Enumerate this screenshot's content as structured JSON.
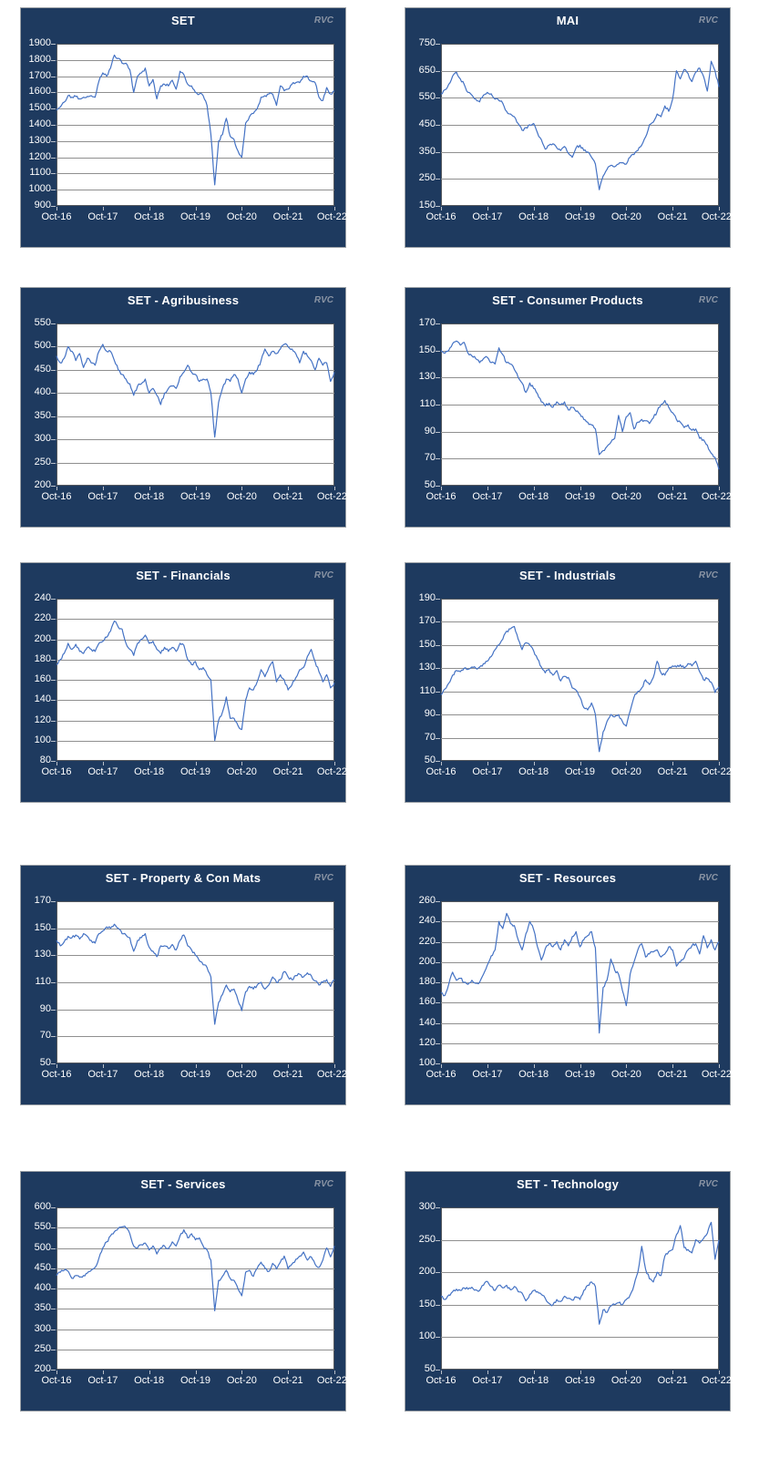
{
  "watermark": "RVC",
  "colors": {
    "panel_bg": "#1e3a5f",
    "panel_border": "#9aa0a6",
    "plot_bg": "#ffffff",
    "plot_border": "#54585e",
    "gridline": "#8f8f8f",
    "tick": "#b9bfc9",
    "series": "#4472c4",
    "title_text": "#ffffff",
    "axis_text": "#ffffff",
    "watermark_text": "#8a94a4"
  },
  "x_tick_labels": [
    "Oct-16",
    "Oct-17",
    "Oct-18",
    "Oct-19",
    "Oct-20",
    "Oct-21",
    "Oct-22"
  ],
  "chart_data": [
    {
      "type": "line",
      "title": "SET",
      "ylim": [
        900,
        1900
      ],
      "ytick_step": 100,
      "x_start": "Oct-16",
      "x_end": "Oct-22",
      "x_frequency": "monthly",
      "grid": "horizontal",
      "values": [
        1490,
        1510,
        1540,
        1580,
        1570,
        1575,
        1560,
        1570,
        1575,
        1580,
        1570,
        1670,
        1720,
        1700,
        1750,
        1830,
        1810,
        1780,
        1780,
        1740,
        1600,
        1700,
        1720,
        1750,
        1640,
        1680,
        1560,
        1640,
        1650,
        1640,
        1675,
        1620,
        1730,
        1710,
        1650,
        1640,
        1600,
        1590,
        1580,
        1520,
        1340,
        1030,
        1300,
        1340,
        1440,
        1330,
        1310,
        1240,
        1200,
        1410,
        1450,
        1470,
        1500,
        1570,
        1580,
        1590,
        1590,
        1520,
        1640,
        1610,
        1620,
        1650,
        1660,
        1660,
        1700,
        1700,
        1670,
        1660,
        1570,
        1550,
        1630,
        1590,
        1610
      ]
    },
    {
      "type": "line",
      "title": "MAI",
      "ylim": [
        150,
        750
      ],
      "ytick_step": 100,
      "x_start": "Oct-16",
      "x_end": "Oct-22",
      "x_frequency": "monthly",
      "grid": "horizontal",
      "values": [
        565,
        580,
        600,
        630,
        645,
        620,
        600,
        570,
        560,
        545,
        535,
        560,
        570,
        565,
        545,
        540,
        530,
        500,
        490,
        480,
        455,
        430,
        440,
        450,
        455,
        420,
        395,
        360,
        375,
        380,
        365,
        355,
        370,
        345,
        330,
        365,
        375,
        355,
        350,
        330,
        305,
        210,
        260,
        285,
        300,
        295,
        305,
        310,
        305,
        330,
        340,
        355,
        375,
        405,
        450,
        460,
        490,
        480,
        520,
        500,
        545,
        650,
        620,
        655,
        640,
        610,
        645,
        660,
        630,
        575,
        685,
        650,
        590
      ]
    },
    {
      "type": "line",
      "title": "SET - Agribusiness",
      "ylim": [
        200,
        550
      ],
      "ytick_step": 50,
      "x_start": "Oct-16",
      "x_end": "Oct-22",
      "x_frequency": "monthly",
      "grid": "horizontal",
      "values": [
        480,
        465,
        475,
        500,
        490,
        470,
        485,
        455,
        475,
        465,
        460,
        490,
        505,
        490,
        490,
        470,
        450,
        440,
        430,
        420,
        395,
        415,
        420,
        430,
        400,
        410,
        395,
        375,
        400,
        410,
        415,
        410,
        435,
        445,
        460,
        445,
        440,
        425,
        430,
        430,
        400,
        305,
        380,
        410,
        430,
        425,
        440,
        430,
        400,
        430,
        445,
        440,
        450,
        470,
        495,
        480,
        490,
        485,
        495,
        505,
        500,
        495,
        485,
        465,
        490,
        480,
        470,
        450,
        475,
        460,
        465,
        425,
        445
      ]
    },
    {
      "type": "line",
      "title": "SET - Consumer Products",
      "ylim": [
        50,
        170
      ],
      "ytick_step": 20,
      "x_start": "Oct-16",
      "x_end": "Oct-22",
      "x_frequency": "monthly",
      "grid": "horizontal",
      "values": [
        150,
        148,
        150,
        155,
        157,
        154,
        156,
        148,
        146,
        144,
        141,
        144,
        145,
        141,
        140,
        152,
        147,
        141,
        140,
        136,
        130,
        126,
        119,
        126,
        122,
        118,
        112,
        109,
        111,
        108,
        112,
        110,
        112,
        106,
        108,
        105,
        103,
        99,
        97,
        95,
        92,
        73,
        76,
        79,
        82,
        85,
        102,
        90,
        101,
        104,
        92,
        97,
        99,
        98,
        96,
        100,
        105,
        110,
        113,
        108,
        104,
        99,
        97,
        93,
        95,
        91,
        92,
        85,
        84,
        80,
        74,
        71,
        62
      ]
    },
    {
      "type": "line",
      "title": "SET - Financials",
      "ylim": [
        80,
        240
      ],
      "ytick_step": 20,
      "x_start": "Oct-16",
      "x_end": "Oct-22",
      "x_frequency": "monthly",
      "grid": "horizontal",
      "values": [
        175,
        180,
        186,
        196,
        190,
        195,
        188,
        186,
        192,
        190,
        188,
        196,
        198,
        202,
        208,
        218,
        212,
        210,
        196,
        190,
        184,
        196,
        200,
        204,
        196,
        198,
        190,
        186,
        192,
        188,
        192,
        188,
        196,
        194,
        180,
        175,
        178,
        170,
        172,
        165,
        160,
        100,
        120,
        128,
        143,
        122,
        122,
        115,
        111,
        140,
        152,
        150,
        158,
        170,
        163,
        172,
        178,
        158,
        165,
        160,
        150,
        155,
        162,
        170,
        172,
        183,
        190,
        178,
        168,
        158,
        165,
        152,
        157
      ]
    },
    {
      "type": "line",
      "title": "SET - Industrials",
      "ylim": [
        50,
        190
      ],
      "ytick_step": 20,
      "x_start": "Oct-16",
      "x_end": "Oct-22",
      "x_frequency": "monthly",
      "grid": "horizontal",
      "values": [
        107,
        112,
        117,
        124,
        128,
        127,
        130,
        129,
        131,
        130,
        131,
        134,
        136,
        140,
        146,
        150,
        155,
        162,
        164,
        166,
        155,
        146,
        152,
        150,
        145,
        138,
        131,
        126,
        129,
        124,
        128,
        119,
        123,
        122,
        113,
        111,
        105,
        96,
        94,
        100,
        90,
        58,
        75,
        84,
        90,
        88,
        90,
        84,
        80,
        93,
        105,
        110,
        113,
        120,
        116,
        122,
        136,
        126,
        124,
        130,
        132,
        131,
        133,
        130,
        134,
        132,
        136,
        127,
        120,
        121,
        118,
        109,
        114
      ]
    },
    {
      "type": "line",
      "title": "SET - Property & Con Mats",
      "ylim": [
        50,
        170
      ],
      "ytick_step": 20,
      "x_start": "Oct-16",
      "x_end": "Oct-22",
      "x_frequency": "monthly",
      "grid": "horizontal",
      "values": [
        141,
        137,
        140,
        144,
        143,
        145,
        142,
        146,
        144,
        141,
        139,
        146,
        148,
        151,
        150,
        153,
        150,
        146,
        145,
        143,
        133,
        141,
        143,
        146,
        136,
        133,
        129,
        137,
        137,
        135,
        138,
        134,
        141,
        145,
        137,
        134,
        130,
        126,
        123,
        121,
        114,
        79,
        95,
        101,
        108,
        103,
        105,
        97,
        89,
        103,
        107,
        105,
        108,
        110,
        105,
        108,
        114,
        110,
        112,
        118,
        114,
        112,
        115,
        116,
        114,
        117,
        115,
        111,
        108,
        110,
        112,
        107,
        112
      ]
    },
    {
      "type": "line",
      "title": "SET - Resources",
      "ylim": [
        100,
        260
      ],
      "ytick_step": 20,
      "x_start": "Oct-16",
      "x_end": "Oct-22",
      "x_frequency": "monthly",
      "grid": "horizontal",
      "values": [
        170,
        167,
        178,
        190,
        182,
        184,
        180,
        178,
        182,
        179,
        180,
        188,
        197,
        206,
        212,
        240,
        233,
        248,
        238,
        236,
        222,
        212,
        228,
        240,
        232,
        215,
        202,
        213,
        218,
        215,
        220,
        212,
        222,
        216,
        225,
        230,
        215,
        222,
        226,
        230,
        214,
        130,
        175,
        182,
        203,
        192,
        188,
        172,
        157,
        188,
        200,
        212,
        218,
        205,
        208,
        210,
        212,
        205,
        208,
        215,
        212,
        196,
        200,
        204,
        212,
        216,
        218,
        208,
        226,
        214,
        222,
        212,
        220
      ]
    },
    {
      "type": "line",
      "title": "SET - Services",
      "ylim": [
        200,
        600
      ],
      "ytick_step": 50,
      "x_start": "Oct-16",
      "x_end": "Oct-22",
      "x_frequency": "monthly",
      "grid": "horizontal",
      "values": [
        432,
        440,
        445,
        443,
        425,
        432,
        428,
        432,
        438,
        445,
        452,
        475,
        500,
        515,
        530,
        540,
        548,
        552,
        550,
        535,
        505,
        500,
        508,
        512,
        495,
        505,
        485,
        500,
        505,
        498,
        515,
        505,
        530,
        545,
        525,
        535,
        520,
        525,
        505,
        495,
        470,
        345,
        420,
        430,
        445,
        425,
        420,
        400,
        382,
        440,
        445,
        430,
        450,
        465,
        450,
        442,
        462,
        448,
        465,
        480,
        448,
        460,
        472,
        480,
        490,
        470,
        478,
        460,
        452,
        470,
        500,
        478,
        505
      ]
    },
    {
      "type": "line",
      "title": "SET - Technology",
      "ylim": [
        50,
        300
      ],
      "ytick_step": 50,
      "x_start": "Oct-16",
      "x_end": "Oct-22",
      "x_frequency": "monthly",
      "grid": "horizontal",
      "values": [
        163,
        158,
        165,
        170,
        174,
        172,
        176,
        174,
        177,
        173,
        172,
        180,
        186,
        178,
        172,
        180,
        176,
        180,
        173,
        178,
        170,
        168,
        156,
        166,
        172,
        170,
        166,
        160,
        152,
        150,
        158,
        155,
        163,
        160,
        157,
        162,
        158,
        172,
        180,
        185,
        178,
        120,
        142,
        138,
        148,
        150,
        153,
        150,
        158,
        165,
        180,
        200,
        240,
        205,
        190,
        185,
        200,
        195,
        225,
        232,
        235,
        258,
        272,
        238,
        235,
        230,
        250,
        245,
        252,
        260,
        277,
        220,
        250
      ]
    }
  ]
}
